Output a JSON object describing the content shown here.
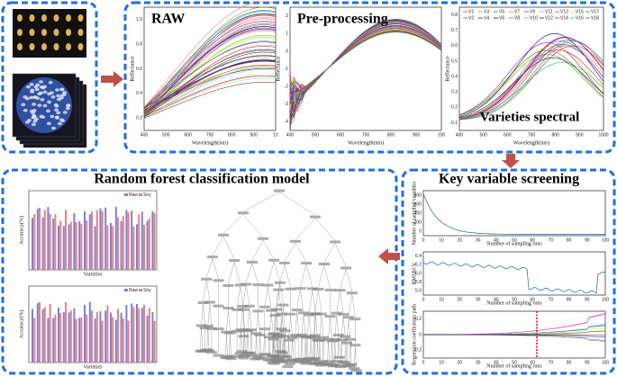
{
  "spectra": {
    "raw": {
      "title": "RAW",
      "ylabel": "Reflectance",
      "xlabel": "Wavelength(nm)",
      "xticks": [
        "400",
        "500",
        "600",
        "700",
        "800",
        "900",
        "10"
      ],
      "yticks": [
        "1.0",
        "0.8",
        "0.6",
        "0.4",
        "0.2"
      ]
    },
    "preprocessing": {
      "title": "Pre-processing",
      "ylabel": "Reflectance",
      "xlabel": "Wavelength(nm)",
      "xticks": [
        "400",
        "500",
        "600",
        "700",
        "800",
        "900",
        "100"
      ],
      "yticks": [
        "2",
        "1",
        "0",
        "-1",
        "-2",
        "-3",
        "-4"
      ]
    },
    "varieties": {
      "title": "Varieties spectral",
      "ylabel": "Reflectance",
      "xlabel": "Wavelength(nm)",
      "xticks": [
        "400",
        "500",
        "600",
        "700",
        "800",
        "900",
        "1000"
      ],
      "yticks": [
        "0.8",
        "0.7",
        "0.6",
        "0.5",
        "0.4",
        "0.3",
        "0.2",
        "0.1"
      ],
      "legend": [
        "V1",
        "V3",
        "V5",
        "V7",
        "V9",
        "V11",
        "V13",
        "V15",
        "V17",
        "V2",
        "V4",
        "V6",
        "V8",
        "V10",
        "V12",
        "V14",
        "V16",
        "V18"
      ]
    }
  },
  "key_variable_screening": {
    "title": "Key variable screening",
    "plots": [
      {
        "ylabel": "Number of sampled variables",
        "xlabel": "Number of sampling runs",
        "yticks": [
          "800",
          "600",
          "400",
          "200",
          "0"
        ],
        "xticks": [
          "0",
          "10",
          "20",
          "30",
          "40",
          "50",
          "60",
          "70",
          "80",
          "90",
          "100"
        ]
      },
      {
        "ylabel": "RMSECV",
        "xlabel": "Number of sampling runs",
        "yticks": [
          "6.4",
          "6.2",
          "6.0",
          "5.8",
          "5.6"
        ],
        "xticks": [
          "0",
          "10",
          "20",
          "30",
          "40",
          "50",
          "60",
          "70",
          "80",
          "90",
          "100"
        ]
      },
      {
        "ylabel": "Regression coefficients path",
        "xlabel": "Number of sampling runs",
        "yticks": [
          "0.2",
          "0",
          "-0.2"
        ],
        "xticks": [
          "0",
          "10",
          "20",
          "30",
          "40",
          "50",
          "60",
          "70",
          "80",
          "90",
          "100"
        ]
      }
    ]
  },
  "random_forest": {
    "title": "Random forest classification model",
    "charts": [
      {
        "ylabel": "Accuracy(%)",
        "xlabel": "Varieties",
        "legend": [
          "Raw",
          "Sny"
        ]
      },
      {
        "ylabel": "Accuracy(%)",
        "xlabel": "Varieties",
        "legend": [
          "Raw",
          "Sny"
        ]
      }
    ]
  }
}
